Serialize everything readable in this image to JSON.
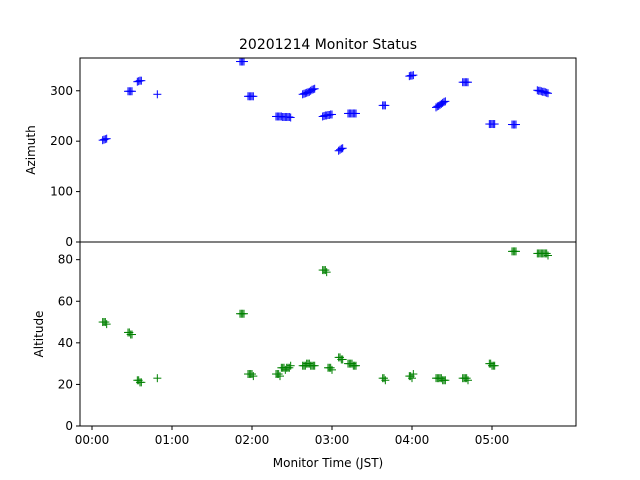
{
  "chart_data": {
    "type": "scatter",
    "title": "20201214 Monitor Status",
    "xlabel": "Monitor Time (JST)",
    "x_tick_labels": [
      "00:00",
      "01:00",
      "02:00",
      "03:00",
      "04:00",
      "05:00"
    ],
    "x_tick_minutes": [
      0,
      60,
      120,
      180,
      240,
      300
    ],
    "xlim_minutes": [
      -9,
      363
    ],
    "marker": "+",
    "panels": [
      {
        "ylabel": "Azimuth",
        "ylim": [
          0,
          365
        ],
        "y_ticks": [
          0,
          100,
          200,
          300
        ],
        "color": "#0000ff",
        "series": {
          "x_minutes": [
            8,
            9,
            10,
            11,
            27,
            28,
            29,
            30,
            34,
            35,
            36,
            37,
            49,
            111,
            112,
            113,
            114,
            117,
            118,
            119,
            120,
            121,
            138,
            139,
            140,
            141,
            142,
            143,
            144,
            145,
            146,
            147,
            148,
            149,
            158,
            159,
            160,
            161,
            162,
            163,
            164,
            165,
            166,
            167,
            173,
            174,
            175,
            176,
            177,
            178,
            179,
            180,
            185,
            186,
            187,
            188,
            192,
            193,
            194,
            195,
            196,
            197,
            198,
            218,
            219,
            220,
            238,
            239,
            240,
            241,
            258,
            259,
            260,
            261,
            262,
            263,
            264,
            265,
            278,
            279,
            280,
            281,
            282,
            298,
            299,
            300,
            301,
            302,
            315,
            316,
            317,
            318,
            334,
            335,
            336,
            337,
            338,
            339,
            340,
            341,
            342
          ],
          "values": [
            202,
            203,
            204,
            205,
            299,
            299,
            299,
            299,
            318,
            319,
            320,
            320,
            293,
            358,
            358,
            358,
            358,
            289,
            289,
            289,
            289,
            289,
            249,
            249,
            249,
            249,
            249,
            248,
            248,
            248,
            248,
            248,
            248,
            247,
            293,
            294,
            295,
            296,
            297,
            298,
            300,
            302,
            303,
            304,
            249,
            250,
            251,
            251,
            252,
            252,
            253,
            253,
            181,
            183,
            185,
            186,
            255,
            255,
            255,
            255,
            255,
            255,
            255,
            271,
            271,
            271,
            329,
            330,
            330,
            331,
            267,
            269,
            270,
            272,
            274,
            276,
            278,
            279,
            317,
            317,
            317,
            317,
            317,
            234,
            234,
            234,
            234,
            234,
            233,
            233,
            233,
            233,
            301,
            300,
            300,
            299,
            298,
            298,
            297,
            296,
            295
          ]
        }
      },
      {
        "ylabel": "Altitude",
        "ylim": [
          0,
          88.5
        ],
        "y_ticks": [
          0,
          20,
          40,
          60,
          80
        ],
        "color": "#008000",
        "series": {
          "x_minutes": [
            8,
            9,
            10,
            11,
            27,
            28,
            29,
            30,
            34,
            35,
            36,
            37,
            49,
            111,
            112,
            113,
            114,
            117,
            118,
            119,
            120,
            121,
            138,
            139,
            140,
            141,
            142,
            143,
            144,
            145,
            146,
            147,
            148,
            149,
            158,
            159,
            160,
            161,
            162,
            163,
            164,
            165,
            166,
            167,
            173,
            174,
            175,
            176,
            177,
            178,
            179,
            180,
            185,
            186,
            187,
            188,
            192,
            193,
            194,
            195,
            196,
            197,
            198,
            218,
            219,
            220,
            238,
            239,
            240,
            241,
            258,
            259,
            260,
            261,
            262,
            263,
            264,
            265,
            278,
            279,
            280,
            281,
            282,
            298,
            299,
            300,
            301,
            302,
            315,
            316,
            317,
            318,
            334,
            335,
            336,
            337,
            338,
            339,
            340,
            341,
            342
          ],
          "values": [
            50,
            50,
            50,
            49,
            45,
            45,
            44,
            44,
            22,
            22,
            21,
            21,
            23,
            54,
            54,
            54,
            54,
            25,
            25,
            25,
            25,
            24,
            25,
            25,
            25,
            24,
            28,
            28,
            28,
            27,
            28,
            28,
            28,
            29,
            29,
            29,
            29,
            30,
            30,
            30,
            29,
            29,
            29,
            29,
            75,
            75,
            75,
            74,
            28,
            28,
            28,
            27,
            33,
            33,
            32,
            32,
            30,
            30,
            30,
            30,
            29,
            29,
            29,
            23,
            23,
            22,
            24,
            24,
            23,
            25,
            23,
            23,
            23,
            23,
            23,
            22,
            22,
            22,
            23,
            23,
            23,
            23,
            22,
            30,
            30,
            29,
            29,
            29,
            84,
            84,
            84,
            84,
            83,
            83,
            83,
            83,
            83,
            83,
            83,
            83,
            82
          ]
        }
      }
    ]
  }
}
